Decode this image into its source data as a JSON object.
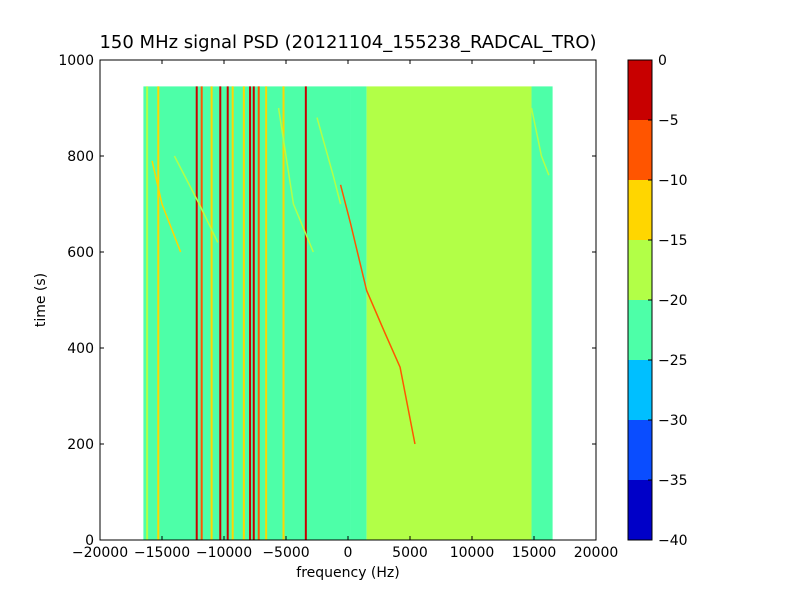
{
  "chart_data": {
    "type": "heatmap",
    "title": "150 MHz signal PSD (20121104_155238_RADCAL_TRO)",
    "xlabel": "frequency (Hz)",
    "ylabel": "time (s)",
    "xlim": [
      -20000,
      20000
    ],
    "ylim": [
      0,
      1000
    ],
    "xticks": [
      -20000,
      -15000,
      -10000,
      -5000,
      0,
      5000,
      10000,
      15000,
      20000
    ],
    "xtick_labels": [
      "−20000",
      "−15000",
      "−10000",
      "−5000",
      "0",
      "5000",
      "10000",
      "15000",
      "20000"
    ],
    "yticks": [
      0,
      200,
      400,
      600,
      800,
      1000
    ],
    "ytick_labels": [
      "0",
      "200",
      "400",
      "600",
      "800",
      "1000"
    ],
    "data_extent": {
      "x": [
        -16500,
        16500
      ],
      "y": [
        0,
        945
      ]
    },
    "colorbar": {
      "ticks": [
        0,
        -5,
        -10,
        -15,
        -20,
        -25,
        -30,
        -35,
        -40
      ],
      "tick_labels": [
        "0",
        "−5",
        "−10",
        "−15",
        "−20",
        "−25",
        "−30",
        "−35",
        "−40"
      ],
      "levels": [
        {
          "range": [
            -40,
            -35
          ],
          "color": "#0000c8"
        },
        {
          "range": [
            -35,
            -30
          ],
          "color": "#0a4dff"
        },
        {
          "range": [
            -30,
            -25
          ],
          "color": "#00bfff"
        },
        {
          "range": [
            -25,
            -20
          ],
          "color": "#4dffa8"
        },
        {
          "range": [
            -20,
            -15
          ],
          "color": "#b2ff47"
        },
        {
          "range": [
            -15,
            -10
          ],
          "color": "#ffd600"
        },
        {
          "range": [
            -10,
            -5
          ],
          "color": "#ff5500"
        },
        {
          "range": [
            -5,
            0
          ],
          "color": "#c80000"
        }
      ]
    },
    "regions": [
      {
        "name": "noise-floor-negative",
        "x": [
          -16500,
          200
        ],
        "level": -22.5
      },
      {
        "name": "transition",
        "x": [
          200,
          1500
        ],
        "level": -20
      },
      {
        "name": "noise-floor-positive",
        "x": [
          1500,
          14800
        ],
        "level": -17.5
      },
      {
        "name": "edge-positive",
        "x": [
          14800,
          16500
        ],
        "level": -20
      }
    ],
    "vertical_lines": [
      {
        "x": -16200,
        "level": -17.5
      },
      {
        "x": -15300,
        "level": -12.5
      },
      {
        "x": -12200,
        "level": -2.5
      },
      {
        "x": -11800,
        "level": -7.5
      },
      {
        "x": -11000,
        "level": -12.5
      },
      {
        "x": -10300,
        "level": -2.5
      },
      {
        "x": -9700,
        "level": -2.5
      },
      {
        "x": -9300,
        "level": -12.5
      },
      {
        "x": -8400,
        "level": -12.5
      },
      {
        "x": -7900,
        "level": -2.5
      },
      {
        "x": -7600,
        "level": -2.5
      },
      {
        "x": -7200,
        "level": -7.5
      },
      {
        "x": -6600,
        "level": -12.5
      },
      {
        "x": -5200,
        "level": -12.5
      },
      {
        "x": -3400,
        "level": -2.5
      }
    ],
    "drifting_traces": [
      {
        "points": [
          [
            -15800,
            790
          ],
          [
            -15000,
            700
          ],
          [
            -13500,
            600
          ]
        ],
        "level": -12.5
      },
      {
        "points": [
          [
            -14000,
            800
          ],
          [
            -12000,
            700
          ],
          [
            -10500,
            620
          ]
        ],
        "level": -17.5
      },
      {
        "points": [
          [
            -5600,
            900
          ],
          [
            -4400,
            700
          ],
          [
            -2800,
            600
          ]
        ],
        "level": -17.5
      },
      {
        "points": [
          [
            -600,
            740
          ],
          [
            200,
            660
          ],
          [
            1500,
            520
          ],
          [
            3000,
            430
          ],
          [
            4200,
            360
          ],
          [
            5400,
            200
          ]
        ],
        "level": -7.5
      },
      {
        "points": [
          [
            -2500,
            880
          ],
          [
            -1200,
            760
          ],
          [
            -600,
            700
          ]
        ],
        "level": -17.5
      },
      {
        "points": [
          [
            14800,
            900
          ],
          [
            15600,
            800
          ],
          [
            16200,
            760
          ]
        ],
        "level": -17.5
      }
    ]
  }
}
